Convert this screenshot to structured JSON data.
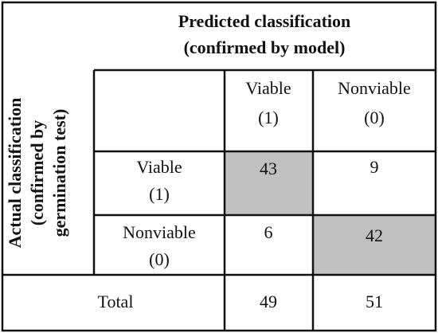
{
  "table": {
    "column_header_title": [
      "Predicted classification",
      "(confirmed by model)"
    ],
    "row_header_title": [
      "Actual classification",
      "(confirmed by",
      "germination test)"
    ],
    "column_headers": [
      {
        "label": "Viable",
        "code": "(1)"
      },
      {
        "label": "Nonviable",
        "code": "(0)"
      }
    ],
    "rows": [
      {
        "label": "Viable",
        "code": "(1)",
        "values": [
          43,
          9
        ]
      },
      {
        "label": "Nonviable",
        "code": "(0)",
        "values": [
          6,
          42
        ]
      }
    ],
    "total": {
      "label": "Total",
      "values": [
        49,
        51
      ]
    }
  }
}
